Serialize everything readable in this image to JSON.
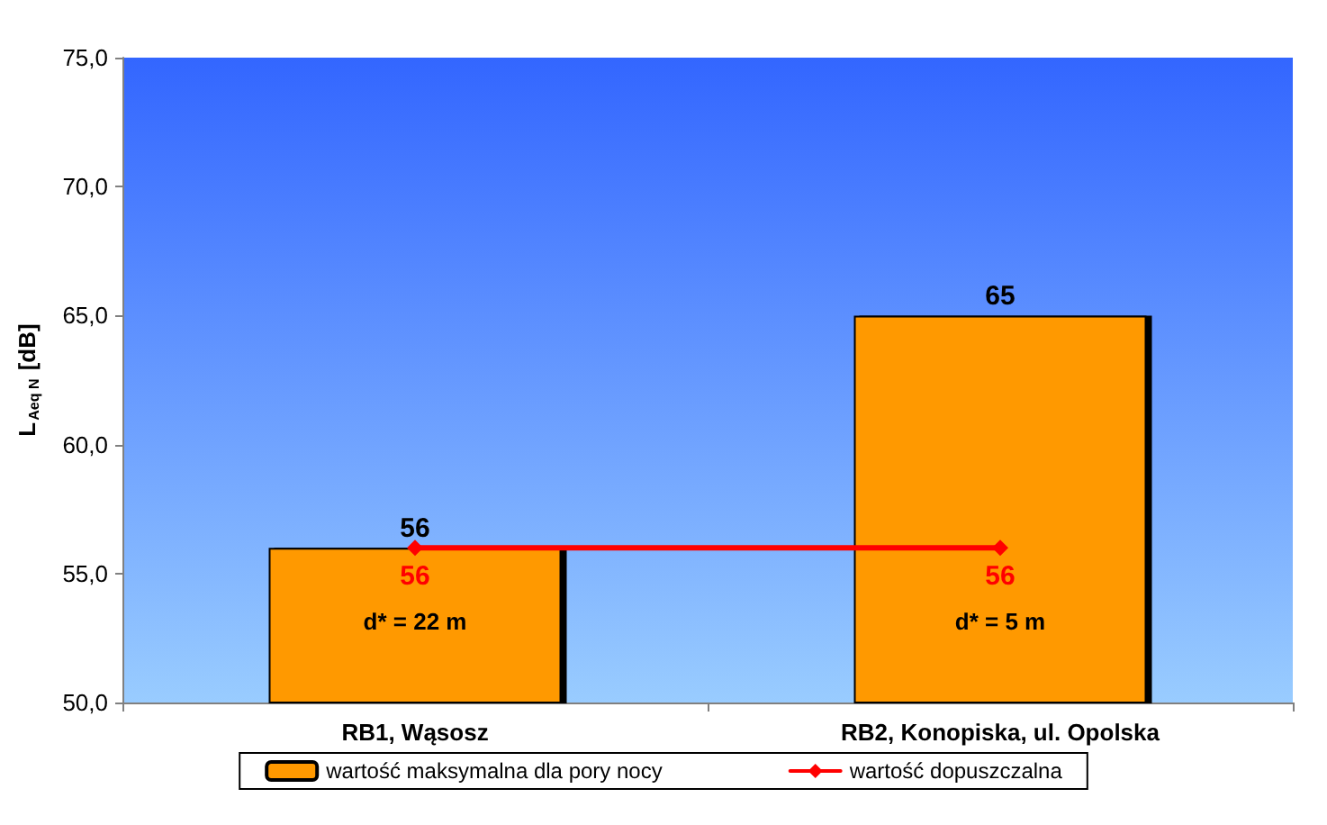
{
  "chart_data": {
    "type": "bar",
    "ylabel": "L$_{Aeq N}$ [dB]",
    "categories": [
      "RB1, Wąsosz",
      "RB2, Konopiska, ul. Opolska"
    ],
    "series": [
      {
        "name": "wartość maksymalna dla pory nocy",
        "color": "#ff9900",
        "values": [
          56,
          65
        ]
      },
      {
        "name": "wartość dopuszczalna",
        "type": "line",
        "color": "#ff0000",
        "values": [
          56,
          56
        ]
      }
    ],
    "ylim": [
      50,
      75
    ],
    "yticks": [
      {
        "value": 50,
        "label": "50,0"
      },
      {
        "value": 55,
        "label": "55,0"
      },
      {
        "value": 60,
        "label": "60,0"
      },
      {
        "value": 65,
        "label": "65,0"
      },
      {
        "value": 70,
        "label": "70,0"
      },
      {
        "value": 75,
        "label": "75,0"
      }
    ],
    "annotations": [
      "d* = 22 m",
      "d* = 5 m"
    ],
    "data_labels": true,
    "legend": "bottom",
    "grid": false,
    "marker": "diamond",
    "line_style": "solid"
  }
}
